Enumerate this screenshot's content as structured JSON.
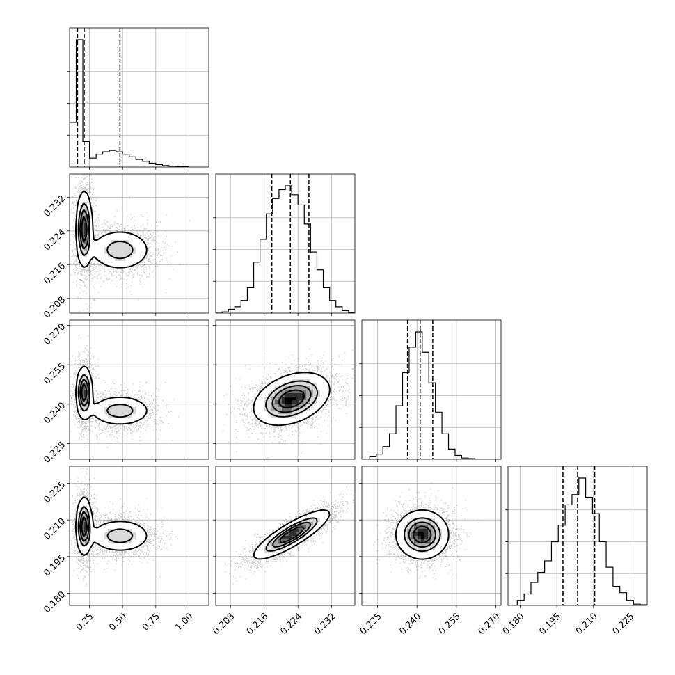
{
  "chart_data": {
    "type": "corner",
    "title": "",
    "grid": true,
    "parameters": [
      {
        "axis_range": [
          0.1,
          1.15
        ],
        "ticks": [
          0.25,
          0.5,
          0.75,
          1.0
        ],
        "tick_labels": [
          "0.25",
          "0.50",
          "0.75",
          "1.00"
        ],
        "quantiles": [
          0.16,
          0.21,
          0.48
        ],
        "hist_bins": [
          0.1,
          0.15,
          0.2,
          0.25,
          0.3,
          0.35,
          0.4,
          0.45,
          0.5,
          0.55,
          0.6,
          0.65,
          0.7,
          0.75,
          0.8,
          0.85,
          0.9,
          0.95,
          1.0
        ],
        "hist_counts": [
          0.35,
          1.0,
          0.2,
          0.07,
          0.1,
          0.12,
          0.13,
          0.12,
          0.1,
          0.08,
          0.06,
          0.045,
          0.03,
          0.02,
          0.012,
          0.007,
          0.004,
          0.002
        ],
        "cores": [
          {
            "center": 0.21,
            "sigma": 0.03
          },
          {
            "center": 0.48,
            "sigma": 0.1
          }
        ]
      },
      {
        "axis_range": [
          0.2045,
          0.2375
        ],
        "ticks": [
          0.208,
          0.216,
          0.224,
          0.232
        ],
        "tick_labels": [
          "0.208",
          "0.216",
          "0.224",
          "0.232"
        ],
        "quantiles": [
          0.2178,
          0.2222,
          0.2266
        ],
        "hist_bins": [
          0.2045,
          0.206,
          0.2075,
          0.209,
          0.2105,
          0.212,
          0.2135,
          0.215,
          0.2165,
          0.218,
          0.2195,
          0.221,
          0.2225,
          0.224,
          0.2255,
          0.227,
          0.2285,
          0.23,
          0.2315,
          0.233,
          0.2345,
          0.236,
          0.2375
        ],
        "hist_counts": [
          0.0,
          0.01,
          0.03,
          0.05,
          0.1,
          0.2,
          0.4,
          0.58,
          0.78,
          0.9,
          0.97,
          1.0,
          0.93,
          0.85,
          0.7,
          0.48,
          0.34,
          0.2,
          0.1,
          0.05,
          0.02,
          0.005
        ],
        "cores": [
          {
            "center": 0.224,
            "sigma": 0.0045
          },
          {
            "center": 0.2195,
            "sigma": 0.0018
          }
        ]
      },
      {
        "axis_range": [
          0.219,
          0.272
        ],
        "ticks": [
          0.225,
          0.24,
          0.255,
          0.27
        ],
        "tick_labels": [
          "0.225",
          "0.240",
          "0.255",
          "0.270"
        ],
        "quantiles": [
          0.2364,
          0.2412,
          0.246
        ],
        "hist_bins": [
          0.2195,
          0.222,
          0.2245,
          0.227,
          0.2295,
          0.232,
          0.2345,
          0.237,
          0.2395,
          0.242,
          0.2445,
          0.247,
          0.2495,
          0.252,
          0.2545,
          0.257,
          0.2595,
          0.262,
          0.2645,
          0.267,
          0.2695,
          0.272
        ],
        "hist_counts": [
          0.0,
          0.02,
          0.04,
          0.1,
          0.2,
          0.42,
          0.68,
          0.88,
          1.0,
          0.84,
          0.6,
          0.37,
          0.2,
          0.08,
          0.03,
          0.01,
          0.005,
          0.0,
          0.0,
          0.0,
          0.0
        ],
        "cores": [
          {
            "center": 0.243,
            "sigma": 0.005
          },
          {
            "center": 0.2375,
            "sigma": 0.002
          }
        ]
      },
      {
        "axis_range": [
          0.175,
          0.232
        ],
        "ticks": [
          0.18,
          0.195,
          0.21,
          0.225
        ],
        "tick_labels": [
          "0.180",
          "0.195",
          "0.210",
          "0.225"
        ],
        "quantiles": [
          0.1975,
          0.2035,
          0.2105
        ],
        "hist_bins": [
          0.176,
          0.1788,
          0.1816,
          0.1844,
          0.1872,
          0.19,
          0.1928,
          0.1956,
          0.1984,
          0.2012,
          0.204,
          0.2068,
          0.2096,
          0.2124,
          0.2152,
          0.218,
          0.2208,
          0.2236,
          0.2264,
          0.2292,
          0.232
        ],
        "hist_counts": [
          0.0,
          0.04,
          0.09,
          0.18,
          0.26,
          0.35,
          0.5,
          0.63,
          0.79,
          0.87,
          1.0,
          0.85,
          0.72,
          0.5,
          0.3,
          0.15,
          0.1,
          0.04,
          0.01,
          0.005
        ],
        "cores": [
          {
            "center": 0.205,
            "sigma": 0.005
          },
          {
            "center": 0.2035,
            "sigma": 0.0025
          }
        ]
      }
    ],
    "pairs": [
      {
        "row": 1,
        "col": 0,
        "kind": "bimodal",
        "modes": [
          {
            "x": 0.21,
            "y": 0.2245,
            "sx": 0.03,
            "sy": 0.0045
          },
          {
            "x": 0.48,
            "y": 0.2195,
            "sx": 0.12,
            "sy": 0.0025
          }
        ]
      },
      {
        "row": 2,
        "col": 0,
        "kind": "bimodal",
        "modes": [
          {
            "x": 0.21,
            "y": 0.2445,
            "sx": 0.03,
            "sy": 0.005
          },
          {
            "x": 0.48,
            "y": 0.2375,
            "sx": 0.12,
            "sy": 0.003
          }
        ]
      },
      {
        "row": 2,
        "col": 1,
        "kind": "correlated",
        "center": [
          0.2225,
          0.242
        ],
        "sigma": [
          0.0045,
          0.005
        ],
        "rho": 0.35
      },
      {
        "row": 3,
        "col": 0,
        "kind": "bimodal",
        "modes": [
          {
            "x": 0.21,
            "y": 0.2075,
            "sx": 0.03,
            "sy": 0.006
          },
          {
            "x": 0.48,
            "y": 0.2035,
            "sx": 0.12,
            "sy": 0.0035
          }
        ]
      },
      {
        "row": 3,
        "col": 1,
        "kind": "correlated",
        "center": [
          0.2225,
          0.204
        ],
        "sigma": [
          0.0045,
          0.005
        ],
        "rho": 0.85
      },
      {
        "row": 3,
        "col": 2,
        "kind": "correlated",
        "center": [
          0.242,
          0.204
        ],
        "sigma": [
          0.005,
          0.005
        ],
        "rho": 0.0
      }
    ]
  }
}
